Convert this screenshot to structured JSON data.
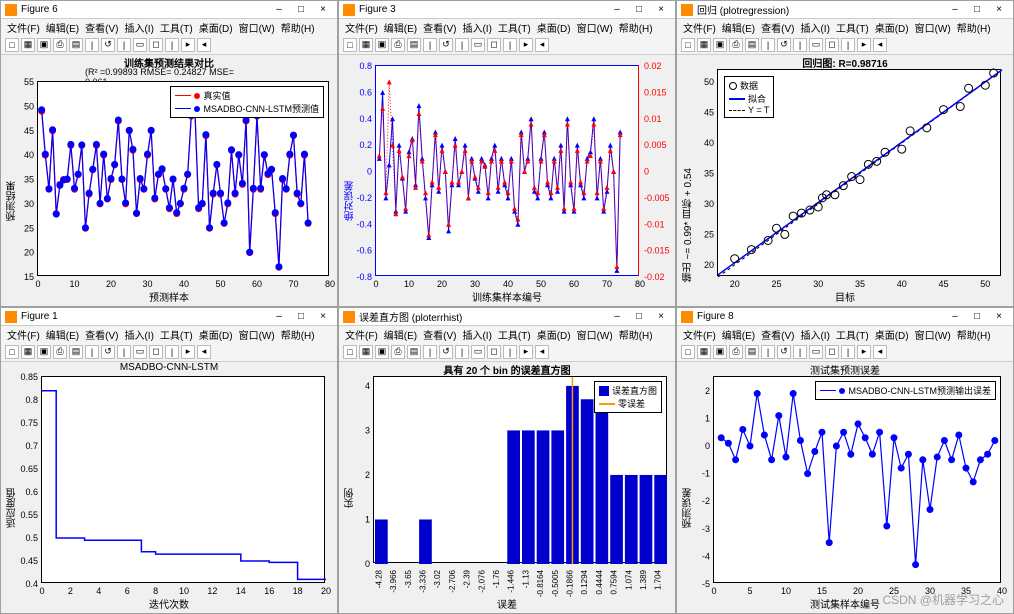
{
  "watermark": "CSDN @机器学习之心",
  "menubar": [
    "文件(F)",
    "编辑(E)",
    "查看(V)",
    "插入(I)",
    "工具(T)",
    "桌面(D)",
    "窗口(W)",
    "帮助(H)"
  ],
  "window_controls": {
    "min": "–",
    "max": "□",
    "close": "×"
  },
  "figures": [
    {
      "id": "fig6",
      "title": "Figure 6",
      "chart_title": "训练集预测结果对比",
      "subtitle": "(R² =0.99893 RMSE= 0.24827 MSE= 0.061…",
      "xlabel": "预测样本",
      "ylabel": "预测结果",
      "xlim": [
        0,
        80
      ],
      "ylim": [
        15,
        55
      ],
      "xticks": [
        0,
        10,
        20,
        30,
        40,
        50,
        60,
        70,
        80
      ],
      "yticks": [
        15,
        20,
        25,
        30,
        35,
        40,
        45,
        50,
        55
      ],
      "legend": [
        {
          "label": "真实值",
          "color": "#ff0000",
          "marker": "circle"
        },
        {
          "label": "MSADBO-CNN-LSTM预测值",
          "color": "#0000ff",
          "marker": "circle"
        }
      ],
      "series": [
        {
          "color": "#ff0000",
          "marker": "circle",
          "data": [
            49,
            40,
            33,
            45,
            28,
            34,
            35,
            35,
            42,
            33,
            36,
            42,
            25,
            32,
            37,
            42,
            30,
            40,
            31,
            35,
            38,
            47,
            35,
            30,
            45,
            41,
            28,
            35,
            33,
            40,
            45,
            31,
            36,
            37,
            33,
            29,
            35,
            28,
            30,
            33,
            36,
            48,
            49,
            29,
            30,
            44,
            25,
            32,
            38,
            32,
            26,
            30,
            41,
            32,
            40,
            34,
            47,
            20,
            33,
            48,
            33,
            40,
            36,
            37,
            28,
            17,
            35,
            33,
            40,
            44,
            32,
            30,
            40,
            26
          ]
        },
        {
          "color": "#0000ff",
          "marker": "circle",
          "data": [
            49.3,
            40.2,
            33.1,
            45.2,
            27.9,
            33.8,
            34.9,
            35.1,
            42.2,
            33.2,
            36.1,
            42.1,
            25.1,
            32.2,
            37.1,
            42.2,
            30.1,
            40.2,
            31.1,
            35.2,
            38.1,
            47.2,
            35.1,
            30.2,
            45.1,
            41.2,
            28.1,
            35.2,
            33.1,
            40.2,
            45.1,
            31.2,
            36.1,
            37.2,
            33.1,
            29.2,
            35.1,
            28.2,
            30.1,
            33.2,
            36.1,
            48.2,
            49.1,
            29.2,
            30.1,
            44.2,
            25.1,
            32.2,
            38.1,
            32.2,
            26.1,
            30.2,
            41.1,
            32.2,
            40.1,
            34.2,
            47.2,
            20.1,
            33.2,
            48.1,
            33.2,
            40.1,
            36.2,
            37.1,
            28.2,
            17.1,
            35.2,
            33.1,
            40.2,
            44.1,
            32.2,
            30.1,
            40.2,
            26.1
          ]
        }
      ],
      "line_width": 1.2,
      "marker_size": 3,
      "bg": "#ffffff",
      "grid": false
    },
    {
      "id": "fig3",
      "title": "Figure 3",
      "xlabel": "训练集样本编号",
      "ylabel": "绝对误差",
      "ylabel2": "",
      "xlim": [
        0,
        80
      ],
      "ylim": [
        -0.8,
        0.8
      ],
      "ylim2": [
        -0.02,
        0.02
      ],
      "xticks": [
        0,
        10,
        20,
        30,
        40,
        50,
        60,
        70,
        80
      ],
      "yticks": [
        -0.8,
        -0.6,
        -0.4,
        -0.2,
        0,
        0.2,
        0.4,
        0.6,
        0.8
      ],
      "yticks2": [
        -0.02,
        -0.015,
        -0.01,
        -0.005,
        0,
        0.005,
        0.01,
        0.015,
        0.02
      ],
      "left_color": "#0000ff",
      "right_color": "#ff0000",
      "series_left": {
        "color": "#0000ff",
        "marker": "triangle",
        "data": [
          0.1,
          0.6,
          -0.2,
          0.05,
          0.4,
          -0.3,
          0.2,
          -0.05,
          -0.3,
          0.15,
          0.25,
          -0.1,
          0.5,
          0.1,
          -0.2,
          -0.5,
          -0.1,
          0.3,
          -0.15,
          0.2,
          0,
          -0.45,
          -0.1,
          0.25,
          -0.1,
          0,
          0.2,
          -0.2,
          0.1,
          -0.05,
          -0.15,
          0.1,
          0.05,
          -0.2,
          0.1,
          0.2,
          -0.15,
          0.1,
          -0.1,
          -0.2,
          0.1,
          -0.3,
          -0.4,
          0.3,
          0,
          0.1,
          0.4,
          -0.15,
          -0.2,
          0.1,
          0.3,
          -0.1,
          -0.2,
          0.1,
          -0.15,
          0.2,
          -0.3,
          0.4,
          -0.1,
          -0.3,
          0.2,
          -0.1,
          -0.2,
          0.1,
          0.15,
          0.4,
          -0.2,
          0.1,
          -0.3,
          -0.15,
          0.2,
          0,
          -0.75,
          0.3
        ]
      },
      "series_right": {
        "color": "#ff0000",
        "marker": "triangle",
        "data": [
          0.003,
          0.012,
          -0.004,
          0.017,
          0.005,
          -0.008,
          0.004,
          -0.001,
          -0.007,
          0.003,
          0.006,
          -0.003,
          0.011,
          0.002,
          -0.004,
          -0.012,
          -0.002,
          0.007,
          -0.003,
          0.004,
          0,
          -0.01,
          -0.002,
          0.005,
          -0.002,
          0,
          0.004,
          -0.005,
          0.002,
          -0.001,
          -0.003,
          0.002,
          0.001,
          -0.004,
          0.002,
          0.004,
          -0.003,
          0.002,
          -0.002,
          -0.004,
          0.002,
          -0.007,
          -0.009,
          0.007,
          0,
          0.002,
          0.009,
          -0.003,
          -0.004,
          0.002,
          0.007,
          -0.002,
          -0.004,
          0.002,
          -0.003,
          0.004,
          -0.007,
          0.009,
          -0.002,
          -0.007,
          0.004,
          -0.002,
          -0.004,
          0.002,
          0.003,
          0.009,
          -0.004,
          0.002,
          -0.007,
          -0.003,
          0.004,
          0,
          -0.018,
          0.007
        ]
      },
      "line_width": 1,
      "marker_size": 3,
      "bg": "#ffffff"
    },
    {
      "id": "figreg",
      "title": "回归 (plotregression)",
      "chart_title": "回归图: R=0.98716",
      "xlabel": "目标",
      "ylabel": "输出 ~= 0.99* 目标 + 0.54",
      "xlim": [
        18,
        52
      ],
      "ylim": [
        18,
        52
      ],
      "xticks": [
        20,
        25,
        30,
        35,
        40,
        45,
        50
      ],
      "yticks": [
        20,
        25,
        30,
        35,
        40,
        45,
        50
      ],
      "legend": [
        {
          "label": "数据",
          "style": "circle",
          "color": "#000000"
        },
        {
          "label": "拟合",
          "style": "line",
          "color": "#0000ff"
        },
        {
          "label": "Y = T",
          "style": "dashed",
          "color": "#000000"
        }
      ],
      "scatter": {
        "color": "#000000",
        "data": [
          [
            20,
            21
          ],
          [
            22,
            22.5
          ],
          [
            24,
            24
          ],
          [
            25,
            26
          ],
          [
            26,
            25
          ],
          [
            27,
            28
          ],
          [
            28,
            28.5
          ],
          [
            29,
            29
          ],
          [
            30,
            29.5
          ],
          [
            30.5,
            31
          ],
          [
            31,
            31.5
          ],
          [
            32,
            31.5
          ],
          [
            33,
            33
          ],
          [
            34,
            34.5
          ],
          [
            35,
            34
          ],
          [
            36,
            36.5
          ],
          [
            37,
            37
          ],
          [
            38,
            38.5
          ],
          [
            40,
            39
          ],
          [
            41,
            42
          ],
          [
            43,
            42.5
          ],
          [
            45,
            45.5
          ],
          [
            47,
            46
          ],
          [
            48,
            49
          ],
          [
            50,
            49.5
          ],
          [
            51,
            51.5
          ]
        ]
      },
      "fit_line": {
        "slope": 0.99,
        "intercept": 0.54,
        "color": "#0000ff"
      },
      "identity_line": {
        "color": "#000000",
        "dash": true
      },
      "bg": "#ffffff",
      "marker_size": 4
    },
    {
      "id": "fig1",
      "title": "Figure 1",
      "chart_title": "MSADBO-CNN-LSTM",
      "xlabel": "迭代次数",
      "ylabel": "适应度值",
      "xlim": [
        0,
        20
      ],
      "ylim": [
        0.4,
        0.85
      ],
      "xticks": [
        0,
        2,
        4,
        6,
        8,
        10,
        12,
        14,
        16,
        18,
        20
      ],
      "yticks": [
        0.4,
        0.45,
        0.5,
        0.55,
        0.6,
        0.65,
        0.7,
        0.75,
        0.8,
        0.85
      ],
      "line": {
        "color": "#0000ff",
        "width": 1.5,
        "data": [
          [
            0,
            0.82
          ],
          [
            1,
            0.82
          ],
          [
            1,
            0.5
          ],
          [
            3,
            0.5
          ],
          [
            3,
            0.495
          ],
          [
            7,
            0.495
          ],
          [
            7,
            0.47
          ],
          [
            8,
            0.47
          ],
          [
            8,
            0.465
          ],
          [
            14,
            0.465
          ],
          [
            14,
            0.45
          ],
          [
            16,
            0.45
          ],
          [
            16,
            0.447
          ],
          [
            18,
            0.447
          ],
          [
            18,
            0.41
          ],
          [
            20,
            0.41
          ]
        ]
      },
      "bg": "#ffffff"
    },
    {
      "id": "fighist",
      "title": "误差直方图 (ploterrhist)",
      "chart_title": "具有 20 个 bin 的误差直方图",
      "xlabel": "误差",
      "ylabel": "实例",
      "xlim": [
        0,
        20
      ],
      "ylim": [
        0,
        4.2
      ],
      "yticks": [
        0,
        1,
        2,
        3,
        4
      ],
      "bins": [
        "-4.28",
        "-3.966",
        "-3.65",
        "-3.336",
        "-3.02",
        "-2.706",
        "-2.39",
        "-2.076",
        "-1.76",
        "-1.446",
        "-1.13",
        "-0.8164",
        "-0.5005",
        "-0.1866",
        "0.1294",
        "0.4444",
        "0.7594",
        "1.074",
        "1.389",
        "1.704"
      ],
      "bars": {
        "color": "#0000cc",
        "values": [
          1,
          0,
          0,
          1,
          0,
          0,
          0,
          0,
          0,
          3,
          3,
          3,
          3,
          4,
          3.7,
          3.7,
          2,
          2,
          2,
          2
        ]
      },
      "zero_line": {
        "color": "#ff9900",
        "x": 13.5
      },
      "legend": [
        {
          "label": "误差直方图",
          "style": "bar",
          "color": "#0000cc"
        },
        {
          "label": "零误差",
          "style": "line",
          "color": "#ff9900"
        }
      ],
      "bg": "#ffffff"
    },
    {
      "id": "fig8",
      "title": "Figure 8",
      "chart_title": "测试集预测误差",
      "xlabel": "测试集样本编号",
      "ylabel": "预测误差",
      "xlim": [
        0,
        40
      ],
      "ylim": [
        -5,
        2.5
      ],
      "xticks": [
        0,
        5,
        10,
        15,
        20,
        25,
        30,
        35,
        40
      ],
      "yticks": [
        -5,
        -4,
        -3,
        -2,
        -1,
        0,
        1,
        2
      ],
      "legend": [
        {
          "label": "MSADBO-CNN-LSTM预测输出误差",
          "color": "#0000ff",
          "marker": "circle"
        }
      ],
      "series": {
        "color": "#0000ff",
        "marker": "circle",
        "width": 1.2,
        "data": [
          0.3,
          0.1,
          -0.5,
          0.6,
          0,
          1.9,
          0.4,
          -0.5,
          1.1,
          -0.4,
          1.9,
          0.2,
          -1,
          -0.2,
          0.5,
          -3.5,
          0,
          0.5,
          -0.3,
          0.8,
          0.3,
          -0.3,
          0.5,
          -2.9,
          0.3,
          -0.8,
          -0.3,
          -4.3,
          -0.5,
          -2.3,
          -0.4,
          0.2,
          -0.5,
          0.4,
          -0.8,
          -1.3,
          -0.5,
          -0.3,
          0.2
        ]
      },
      "bg": "#ffffff"
    }
  ]
}
